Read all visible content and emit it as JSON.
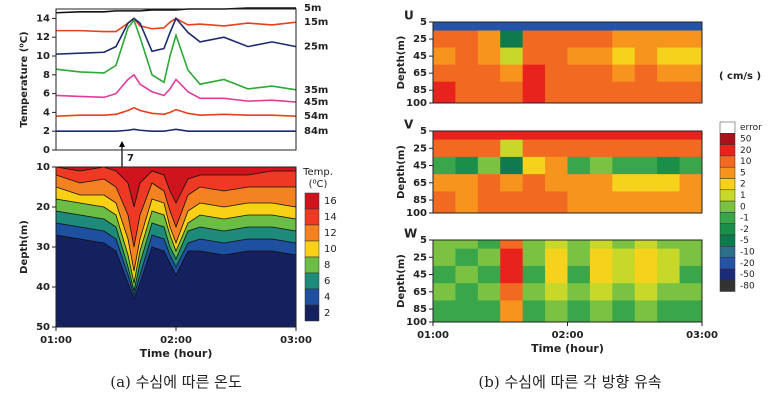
{
  "chart_data": [
    {
      "type": "line",
      "ylabel": "Temperature (⁰C)",
      "x": [
        1,
        1.2,
        1.4,
        1.5,
        1.6,
        1.65,
        1.7,
        1.8,
        1.9,
        1.95,
        2.0,
        2.1,
        2.2,
        2.4,
        2.6,
        2.8,
        3.0
      ],
      "xlim": [
        1,
        3
      ],
      "ylim": [
        0,
        15
      ],
      "yticks": [
        0,
        2,
        4,
        6,
        8,
        10,
        12,
        14
      ],
      "annotation": {
        "text": "7",
        "x": 1.55
      },
      "series": [
        {
          "name": "5m",
          "color": "#111111",
          "values": [
            14.6,
            14.7,
            14.7,
            14.8,
            14.8,
            14.8,
            14.8,
            14.9,
            14.9,
            14.9,
            14.9,
            15,
            15,
            15,
            15.1,
            15.1,
            15.1
          ]
        },
        {
          "name": "15m",
          "color": "#e8401c",
          "values": [
            12.7,
            12.7,
            12.6,
            12.6,
            13.5,
            14,
            13.2,
            12.9,
            13,
            13.6,
            14,
            13.3,
            13.4,
            13.2,
            13.5,
            13.3,
            13.6
          ]
        },
        {
          "name": "25m",
          "color": "#1c2a6e",
          "values": [
            10.2,
            10.3,
            10.4,
            11,
            13.5,
            14,
            13.5,
            10.5,
            10.8,
            12.5,
            14,
            12.5,
            11.5,
            12,
            11,
            11.5,
            11
          ]
        },
        {
          "name": "35m",
          "color": "#2ea836",
          "values": [
            8.6,
            8.3,
            8.2,
            9,
            13,
            13.8,
            12,
            8,
            7.2,
            10,
            12.2,
            8.5,
            7,
            7.5,
            6.5,
            6.8,
            6.4
          ]
        },
        {
          "name": "45m",
          "color": "#e5399b",
          "values": [
            5.8,
            5.7,
            5.6,
            6,
            7.5,
            8,
            7,
            6.2,
            5.8,
            6.5,
            7.5,
            6.2,
            5.5,
            5.5,
            5.2,
            5.3,
            5.1
          ]
        },
        {
          "name": "54m",
          "color": "#e8401c",
          "values": [
            3.6,
            3.7,
            3.7,
            3.8,
            4.2,
            4.5,
            4.2,
            3.9,
            3.8,
            4,
            4.3,
            3.9,
            3.7,
            3.8,
            3.7,
            3.7,
            3.6
          ]
        },
        {
          "name": "84m",
          "color": "#1c2a6e",
          "values": [
            2,
            2,
            2,
            2,
            2.1,
            2.2,
            2.1,
            2,
            2,
            2.1,
            2.2,
            2,
            2,
            2,
            2,
            2,
            2
          ]
        }
      ]
    },
    {
      "type": "contour",
      "ylabel": "Depth(m)",
      "xlabel": "Time (hour)",
      "x": [
        1,
        1.2,
        1.4,
        1.5,
        1.6,
        1.65,
        1.7,
        1.8,
        1.9,
        1.95,
        2.0,
        2.1,
        2.2,
        2.4,
        2.6,
        2.8,
        3.0
      ],
      "xlim": [
        1,
        3
      ],
      "xticks": [
        {
          "value": 1,
          "label": "01:00"
        },
        {
          "value": 2,
          "label": "02:00"
        },
        {
          "value": 3,
          "label": "03:00"
        }
      ],
      "ylim": [
        10,
        50
      ],
      "yticks": [
        10,
        20,
        30,
        40,
        50
      ],
      "y_inverted": true,
      "colorbar": {
        "title": [
          "Temp.",
          "(⁰C)"
        ],
        "levels": [
          16,
          14,
          12,
          10,
          8,
          6,
          4,
          2
        ],
        "colors": [
          "#d0141e",
          "#ee3a24",
          "#f58220",
          "#f8d117",
          "#6cbd45",
          "#1d8a7a",
          "#1f4fa0",
          "#15205e"
        ]
      },
      "isotherms": [
        [
          10,
          11,
          10,
          11,
          14,
          20,
          14,
          11,
          12,
          16,
          19,
          13,
          12,
          12,
          12,
          11,
          11
        ],
        [
          12,
          14,
          13,
          15,
          22,
          30,
          22,
          14,
          16,
          21,
          25,
          17,
          15,
          16,
          15,
          15,
          15
        ],
        [
          15,
          17,
          17,
          19,
          28,
          36,
          28,
          18,
          19,
          25,
          29,
          21,
          19,
          20,
          19,
          19,
          20
        ],
        [
          18,
          19,
          20,
          22,
          32,
          39,
          31,
          21,
          22,
          27,
          31,
          24,
          22,
          23,
          22,
          22,
          23
        ],
        [
          21,
          22,
          23,
          25,
          35,
          41,
          34,
          24,
          25,
          30,
          33,
          26,
          25,
          26,
          25,
          25,
          26
        ],
        [
          24,
          25,
          26,
          28,
          37,
          42,
          37,
          27,
          28,
          32,
          35,
          29,
          28,
          29,
          28,
          28,
          29
        ],
        [
          27,
          28,
          29,
          31,
          39,
          43,
          39,
          30,
          31,
          34,
          37,
          31,
          31,
          32,
          31,
          31,
          32
        ]
      ]
    },
    {
      "type": "heatmap",
      "label": "U",
      "ylabel": "Depth(m)",
      "xlim": [
        1,
        3
      ],
      "ylim": [
        5,
        100
      ],
      "y_inverted": true,
      "yticks": [
        5,
        25,
        45,
        65,
        85,
        100
      ],
      "x_edges": [
        1,
        1.1667,
        1.3333,
        1.5,
        1.6667,
        1.8333,
        2,
        2.1667,
        2.3333,
        2.5,
        2.6667,
        2.8333,
        3
      ],
      "y_edges": [
        5,
        15,
        35,
        55,
        75,
        100
      ],
      "z": [
        [
          -20,
          -20,
          -20,
          -20,
          -20,
          -20,
          -20,
          -20,
          -20,
          -20,
          -20,
          -20
        ],
        [
          10,
          10,
          5,
          -5,
          10,
          10,
          10,
          10,
          5,
          5,
          5,
          5
        ],
        [
          5,
          10,
          5,
          1,
          10,
          10,
          5,
          5,
          2,
          5,
          2,
          2
        ],
        [
          10,
          10,
          10,
          5,
          20,
          10,
          10,
          10,
          5,
          10,
          5,
          5
        ],
        [
          20,
          10,
          10,
          10,
          20,
          10,
          10,
          10,
          10,
          10,
          10,
          10
        ]
      ],
      "colorbar": {
        "title": "( cm/s )",
        "levels": [
          "error",
          50,
          20,
          10,
          5,
          2,
          1,
          0,
          -1,
          -2,
          -5,
          -10,
          -20,
          -50,
          -80
        ],
        "colors": [
          "#ffffff",
          "#a8121c",
          "#e8231e",
          "#f26a21",
          "#f7941d",
          "#f5d21b",
          "#c8d82a",
          "#7cc242",
          "#3aa64a",
          "#1a8f4a",
          "#0f7a4d",
          "#2b6f8a",
          "#2453a8",
          "#1b2b7a",
          "#333333"
        ]
      }
    },
    {
      "type": "heatmap",
      "label": "V",
      "ylabel": "Depth(m)",
      "xlim": [
        1,
        3
      ],
      "ylim": [
        5,
        100
      ],
      "y_inverted": true,
      "yticks": [
        5,
        25,
        45,
        65,
        85,
        100
      ],
      "x_edges": [
        1,
        1.1667,
        1.3333,
        1.5,
        1.6667,
        1.8333,
        2,
        2.1667,
        2.3333,
        2.5,
        2.6667,
        2.8333,
        3
      ],
      "y_edges": [
        5,
        15,
        35,
        55,
        75,
        100
      ],
      "z": [
        [
          20,
          20,
          20,
          20,
          20,
          20,
          20,
          20,
          20,
          20,
          20,
          20
        ],
        [
          10,
          10,
          10,
          1,
          10,
          10,
          10,
          10,
          10,
          10,
          10,
          10
        ],
        [
          -1,
          -2,
          0,
          -5,
          2,
          5,
          -1,
          0,
          -1,
          -1,
          -2,
          -1
        ],
        [
          5,
          5,
          10,
          5,
          10,
          5,
          5,
          5,
          2,
          2,
          2,
          5
        ],
        [
          10,
          5,
          10,
          10,
          10,
          10,
          5,
          5,
          5,
          5,
          5,
          5
        ]
      ]
    },
    {
      "type": "heatmap",
      "label": "W",
      "ylabel": "Depth(m)",
      "xlabel": "Time (hour)",
      "xlim": [
        1,
        3
      ],
      "ylim": [
        5,
        100
      ],
      "y_inverted": true,
      "xticks": [
        {
          "value": 1,
          "label": "01:00"
        },
        {
          "value": 2,
          "label": "02:00"
        },
        {
          "value": 3,
          "label": "03:00"
        }
      ],
      "yticks": [
        5,
        25,
        45,
        65,
        85,
        100
      ],
      "x_edges": [
        1,
        1.1667,
        1.3333,
        1.5,
        1.6667,
        1.8333,
        2,
        2.1667,
        2.3333,
        2.5,
        2.6667,
        2.8333,
        3
      ],
      "y_edges": [
        5,
        15,
        35,
        55,
        75,
        100
      ],
      "z": [
        [
          0,
          0,
          -1,
          10,
          0,
          1,
          0,
          1,
          0,
          1,
          0,
          0
        ],
        [
          0,
          -1,
          0,
          20,
          0,
          2,
          0,
          2,
          1,
          2,
          1,
          0
        ],
        [
          -1,
          0,
          -1,
          20,
          -1,
          2,
          -1,
          2,
          1,
          2,
          1,
          -1
        ],
        [
          0,
          -1,
          0,
          10,
          0,
          1,
          0,
          1,
          0,
          1,
          0,
          0
        ],
        [
          -1,
          -1,
          -1,
          5,
          -1,
          0,
          -1,
          0,
          -1,
          0,
          -1,
          -1
        ]
      ]
    }
  ],
  "captions": [
    "(a) 수심에 따른 온도",
    "(b) 수심에 따른 각 방향 유속"
  ]
}
